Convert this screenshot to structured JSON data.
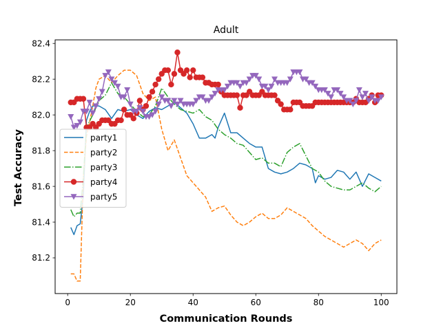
{
  "chart_data": {
    "type": "line",
    "title": "Adult",
    "xlabel": "Communication Rounds",
    "ylabel": "Test Accuracy",
    "xlim": [
      -4,
      105
    ],
    "ylim": [
      81.0,
      82.42
    ],
    "xticks": [
      0,
      20,
      40,
      60,
      80,
      100
    ],
    "yticks": [
      81.2,
      81.4,
      81.6,
      81.8,
      82.0,
      82.2,
      82.4
    ],
    "legend_position": "center-left",
    "series": [
      {
        "name": "party1",
        "color": "#1f77b4",
        "style": "solid",
        "marker": "none",
        "x": [
          1,
          2,
          3,
          4,
          5,
          6,
          7,
          8,
          9,
          10,
          12,
          14,
          16,
          18,
          20,
          22,
          24,
          26,
          28,
          30,
          32,
          34,
          36,
          38,
          40,
          42,
          44,
          46,
          47,
          48,
          50,
          52,
          54,
          56,
          58,
          60,
          62,
          64,
          66,
          68,
          70,
          72,
          74,
          76,
          78,
          79,
          80,
          82,
          84,
          86,
          88,
          90,
          92,
          94,
          96,
          98,
          100
        ],
        "values": [
          81.37,
          81.33,
          81.38,
          81.39,
          81.55,
          81.97,
          82.02,
          82.05,
          82.05,
          82.05,
          82.03,
          81.98,
          82.03,
          82.02,
          82.03,
          82.0,
          81.98,
          82.02,
          82.04,
          82.03,
          82.05,
          82.07,
          82.04,
          82.01,
          81.95,
          81.87,
          81.87,
          81.89,
          81.87,
          81.93,
          82.01,
          81.9,
          81.9,
          81.87,
          81.84,
          81.82,
          81.82,
          81.7,
          81.68,
          81.67,
          81.68,
          81.7,
          81.73,
          81.72,
          81.7,
          81.62,
          81.66,
          81.64,
          81.65,
          81.69,
          81.68,
          81.64,
          81.68,
          81.6,
          81.67,
          81.65,
          81.63
        ]
      },
      {
        "name": "party2",
        "color": "#ff7f0e",
        "style": "dashed",
        "marker": "none",
        "x": [
          1,
          2,
          3,
          4,
          5,
          6,
          7,
          8,
          9,
          10,
          12,
          14,
          16,
          18,
          20,
          22,
          24,
          26,
          28,
          30,
          32,
          34,
          36,
          38,
          40,
          42,
          44,
          46,
          48,
          50,
          52,
          54,
          56,
          58,
          60,
          62,
          64,
          66,
          68,
          70,
          72,
          74,
          76,
          78,
          80,
          82,
          84,
          86,
          88,
          90,
          92,
          94,
          96,
          98,
          100
        ],
        "values": [
          81.11,
          81.11,
          81.07,
          81.07,
          81.65,
          81.88,
          81.96,
          82.05,
          82.15,
          82.2,
          82.22,
          82.18,
          82.22,
          82.25,
          82.25,
          82.22,
          82.12,
          82.08,
          82.1,
          81.92,
          81.8,
          81.86,
          81.76,
          81.66,
          81.62,
          81.58,
          81.54,
          81.46,
          81.48,
          81.49,
          81.44,
          81.4,
          81.38,
          81.4,
          81.43,
          81.45,
          81.42,
          81.42,
          81.44,
          81.48,
          81.46,
          81.44,
          81.42,
          81.38,
          81.35,
          81.32,
          81.3,
          81.28,
          81.26,
          81.28,
          81.3,
          81.28,
          81.24,
          81.28,
          81.3
        ]
      },
      {
        "name": "party3",
        "color": "#2ca02c",
        "style": "dashdot",
        "marker": "none",
        "x": [
          1,
          2,
          3,
          4,
          5,
          6,
          8,
          10,
          12,
          14,
          16,
          18,
          20,
          22,
          24,
          26,
          28,
          30,
          32,
          34,
          36,
          38,
          40,
          42,
          44,
          46,
          48,
          50,
          52,
          54,
          56,
          58,
          60,
          62,
          64,
          66,
          68,
          70,
          72,
          74,
          76,
          78,
          80,
          82,
          84,
          86,
          88,
          90,
          92,
          94,
          96,
          98,
          100
        ],
        "values": [
          81.47,
          81.43,
          81.45,
          81.45,
          81.65,
          81.93,
          82.0,
          82.08,
          82.11,
          82.18,
          82.12,
          82.1,
          82.06,
          82.02,
          81.99,
          82.0,
          82.05,
          82.15,
          82.1,
          82.06,
          82.03,
          82.02,
          82.01,
          82.03,
          81.99,
          81.97,
          81.92,
          81.89,
          81.87,
          81.84,
          81.83,
          81.79,
          81.75,
          81.76,
          81.73,
          81.73,
          81.71,
          81.79,
          81.82,
          81.84,
          81.77,
          81.7,
          81.68,
          81.63,
          81.6,
          81.59,
          81.58,
          81.58,
          81.6,
          81.62,
          81.59,
          81.57,
          81.6
        ]
      },
      {
        "name": "party4",
        "color": "#d62728",
        "style": "solid",
        "marker": "circle",
        "x": [
          1,
          2,
          3,
          4,
          5,
          6,
          7,
          8,
          9,
          10,
          11,
          12,
          13,
          14,
          15,
          16,
          17,
          18,
          19,
          20,
          21,
          22,
          23,
          24,
          25,
          26,
          27,
          28,
          29,
          30,
          31,
          32,
          33,
          34,
          35,
          36,
          37,
          38,
          39,
          40,
          41,
          42,
          43,
          44,
          45,
          46,
          47,
          48,
          49,
          50,
          51,
          52,
          53,
          54,
          55,
          56,
          57,
          58,
          59,
          60,
          61,
          62,
          63,
          64,
          65,
          66,
          67,
          68,
          69,
          70,
          71,
          72,
          73,
          74,
          75,
          76,
          77,
          78,
          79,
          80,
          81,
          82,
          83,
          84,
          85,
          86,
          87,
          88,
          89,
          90,
          91,
          92,
          93,
          94,
          95,
          96,
          97,
          98,
          99,
          100
        ],
        "values": [
          82.07,
          82.07,
          82.09,
          82.09,
          82.09,
          81.93,
          81.93,
          81.95,
          81.93,
          81.95,
          81.97,
          81.97,
          81.97,
          81.95,
          81.95,
          81.97,
          81.97,
          82.03,
          82.0,
          82.0,
          81.98,
          82.01,
          82.08,
          82.03,
          82.05,
          82.1,
          82.13,
          82.17,
          82.2,
          82.23,
          82.25,
          82.25,
          82.17,
          82.23,
          82.35,
          82.25,
          82.23,
          82.25,
          82.21,
          82.25,
          82.21,
          82.21,
          82.21,
          82.18,
          82.18,
          82.17,
          82.17,
          82.17,
          82.13,
          82.11,
          82.11,
          82.11,
          82.11,
          82.11,
          82.04,
          82.11,
          82.11,
          82.13,
          82.11,
          82.11,
          82.11,
          82.13,
          82.11,
          82.11,
          82.11,
          82.11,
          82.08,
          82.06,
          82.03,
          82.03,
          82.03,
          82.07,
          82.07,
          82.07,
          82.05,
          82.05,
          82.05,
          82.05,
          82.07,
          82.07,
          82.07,
          82.07,
          82.07,
          82.07,
          82.07,
          82.07,
          82.07,
          82.07,
          82.07,
          82.07,
          82.07,
          82.09,
          82.07,
          82.07,
          82.07,
          82.09,
          82.11,
          82.07,
          82.11,
          82.11
        ]
      },
      {
        "name": "party5",
        "color": "#9467bd",
        "style": "solid",
        "marker": "triangle_down",
        "x": [
          1,
          2,
          3,
          4,
          5,
          6,
          7,
          8,
          9,
          10,
          11,
          12,
          13,
          14,
          15,
          16,
          17,
          18,
          19,
          20,
          21,
          22,
          23,
          24,
          25,
          26,
          27,
          28,
          29,
          30,
          31,
          32,
          33,
          34,
          35,
          36,
          37,
          38,
          39,
          40,
          41,
          42,
          43,
          44,
          45,
          46,
          47,
          48,
          49,
          50,
          51,
          52,
          53,
          54,
          55,
          56,
          57,
          58,
          59,
          60,
          61,
          62,
          63,
          64,
          65,
          66,
          67,
          68,
          69,
          70,
          71,
          72,
          73,
          74,
          75,
          76,
          77,
          78,
          79,
          80,
          81,
          82,
          83,
          84,
          85,
          86,
          87,
          88,
          89,
          90,
          91,
          92,
          93,
          94,
          95,
          96,
          97,
          98,
          99,
          100
        ],
        "values": [
          81.99,
          81.93,
          81.94,
          81.96,
          82.02,
          82.02,
          82.07,
          82.01,
          82.05,
          82.09,
          82.13,
          82.22,
          82.24,
          82.2,
          82.18,
          82.16,
          82.1,
          82.1,
          82.14,
          82.06,
          82.02,
          82.02,
          82.04,
          82.02,
          81.99,
          81.99,
          82.0,
          82.02,
          82.06,
          82.1,
          82.08,
          82.08,
          82.05,
          82.08,
          82.06,
          82.08,
          82.06,
          82.06,
          82.06,
          82.06,
          82.08,
          82.1,
          82.1,
          82.08,
          82.08,
          82.1,
          82.12,
          82.14,
          82.14,
          82.14,
          82.16,
          82.18,
          82.18,
          82.18,
          82.16,
          82.18,
          82.18,
          82.2,
          82.22,
          82.22,
          82.2,
          82.16,
          82.16,
          82.14,
          82.16,
          82.2,
          82.18,
          82.18,
          82.18,
          82.18,
          82.2,
          82.24,
          82.24,
          82.24,
          82.2,
          82.2,
          82.18,
          82.18,
          82.16,
          82.14,
          82.14,
          82.14,
          82.12,
          82.1,
          82.14,
          82.14,
          82.12,
          82.1,
          82.08,
          82.08,
          82.06,
          82.08,
          82.14,
          82.1,
          82.12,
          82.08,
          82.1,
          82.08,
          82.08,
          82.1
        ]
      }
    ]
  }
}
